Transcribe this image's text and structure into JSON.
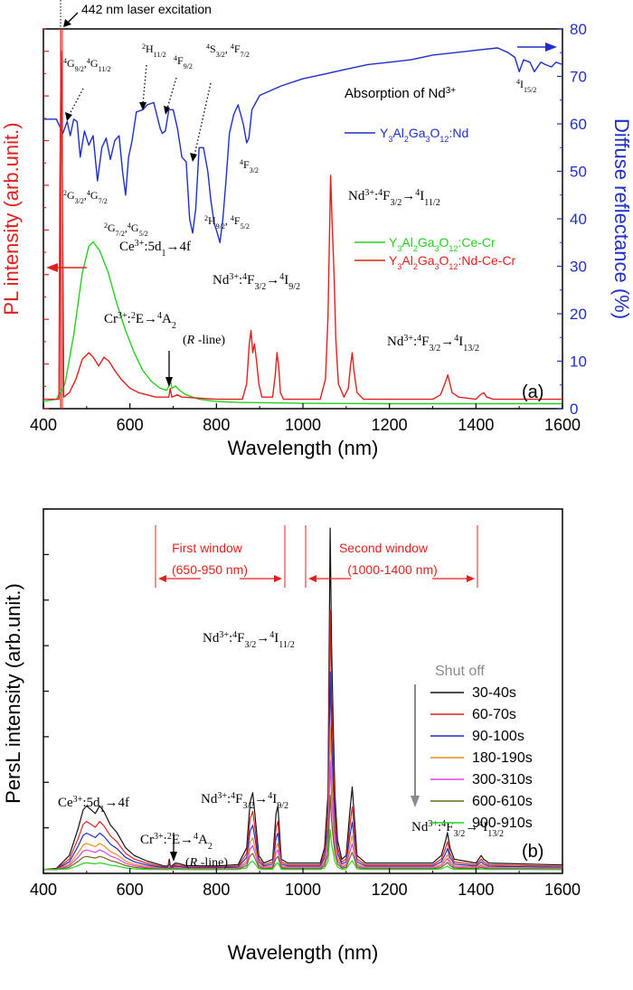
{
  "colors": {
    "red": "#e0201e",
    "blue": "#1e2ec8",
    "green": "#22d01e",
    "black": "#111111",
    "orange": "#f08c1e",
    "magenta": "#e040e0",
    "olive": "#6b6b12",
    "gray": "#808080"
  },
  "chart_data": [
    {
      "type": "line",
      "panel": "(a)",
      "xlabel": "Wavelength (nm)",
      "ylabel_left": "PL intensity (arb.unit.)",
      "ylabel_right": "Diffuse reflectance (%)",
      "xlim": [
        400,
        1600
      ],
      "ylim_right": [
        0,
        80
      ],
      "x_ticks": [
        "400",
        "600",
        "800",
        "1000",
        "1200",
        "1400",
        "1600"
      ],
      "y_ticks_right": [
        "0",
        "10",
        "20",
        "30",
        "40",
        "50",
        "60",
        "70",
        "80"
      ],
      "laser_label": "442 nm laser excitation",
      "annotations": {
        "ce": "Ce3+:5d1→4f",
        "cr": "Cr3+:2E→4A2",
        "r_line": "(R -line)",
        "nd1": "Nd3+:4F3/2→4I9/2",
        "nd2": "Nd3+:4F3/2→4I11/2",
        "nd3": "Nd3+:4F3/2→4I13/2",
        "abs": "Absorption of Nd3+"
      },
      "legend": {
        "blue": "Y3Al2Ga3O12:Nd",
        "green": "Y3Al2Ga3O12:Ce-Cr",
        "red": "Y3Al2Ga3O12:Nd-Ce-Cr"
      },
      "series": [
        {
          "name": "Y3Al2Ga3O12:Nd",
          "axis": "right",
          "points": [
            [
              400,
              61
            ],
            [
              430,
              61
            ],
            [
              445,
              58
            ],
            [
              455,
              60.5
            ],
            [
              462,
              57.5
            ],
            [
              470,
              61
            ],
            [
              478,
              60.5
            ],
            [
              485,
              53
            ],
            [
              495,
              58.5
            ],
            [
              505,
              55.5
            ],
            [
              515,
              57.5
            ],
            [
              525,
              48
            ],
            [
              535,
              55
            ],
            [
              545,
              57
            ],
            [
              555,
              52.5
            ],
            [
              565,
              56.5
            ],
            [
              575,
              57.5
            ],
            [
              583,
              50
            ],
            [
              590,
              45
            ],
            [
              597,
              53
            ],
            [
              605,
              56.5
            ],
            [
              615,
              62.5
            ],
            [
              630,
              63
            ],
            [
              640,
              64
            ],
            [
              655,
              64.5
            ],
            [
              670,
              59
            ],
            [
              675,
              58
            ],
            [
              682,
              58.5
            ],
            [
              690,
              63
            ],
            [
              700,
              63
            ],
            [
              710,
              59
            ],
            [
              720,
              53
            ],
            [
              730,
              52
            ],
            [
              738,
              40
            ],
            [
              745,
              37
            ],
            [
              752,
              42
            ],
            [
              760,
              55
            ],
            [
              770,
              55
            ],
            [
              780,
              50
            ],
            [
              787,
              44
            ],
            [
              795,
              39
            ],
            [
              802,
              37
            ],
            [
              808,
              35
            ],
            [
              815,
              40
            ],
            [
              822,
              48
            ],
            [
              830,
              58
            ],
            [
              840,
              62
            ],
            [
              850,
              64
            ],
            [
              862,
              60
            ],
            [
              870,
              56
            ],
            [
              875,
              57
            ],
            [
              882,
              63
            ],
            [
              900,
              66
            ],
            [
              950,
              68
            ],
            [
              1000,
              69.5
            ],
            [
              1050,
              70.5
            ],
            [
              1100,
              71.5
            ],
            [
              1150,
              72.5
            ],
            [
              1200,
              73
            ],
            [
              1250,
              73.5
            ],
            [
              1300,
              74.5
            ],
            [
              1350,
              75
            ],
            [
              1400,
              75.5
            ],
            [
              1450,
              76
            ],
            [
              1475,
              75
            ],
            [
              1490,
              74
            ],
            [
              1500,
              71
            ],
            [
              1510,
              73.5
            ],
            [
              1525,
              73
            ],
            [
              1535,
              71
            ],
            [
              1550,
              73
            ],
            [
              1560,
              72.5
            ],
            [
              1575,
              72
            ],
            [
              1585,
              73
            ],
            [
              1600,
              72.5
            ]
          ]
        },
        {
          "name": "Y3Al2Ga3O12:Ce-Cr",
          "axis": "left",
          "points": [
            [
              400,
              1
            ],
            [
              430,
              1.5
            ],
            [
              450,
              5
            ],
            [
              470,
              16
            ],
            [
              490,
              30
            ],
            [
              505,
              36
            ],
            [
              515,
              37
            ],
            [
              530,
              35
            ],
            [
              550,
              30
            ],
            [
              570,
              23
            ],
            [
              590,
              17
            ],
            [
              610,
              12
            ],
            [
              630,
              8
            ],
            [
              650,
              5.5
            ],
            [
              670,
              4
            ],
            [
              685,
              3.5
            ],
            [
              690,
              4.5
            ],
            [
              693,
              6
            ],
            [
              697,
              4
            ],
            [
              705,
              4.5
            ],
            [
              715,
              3.5
            ],
            [
              730,
              2.5
            ],
            [
              760,
              1.5
            ],
            [
              800,
              1
            ],
            [
              850,
              0.8
            ],
            [
              1000,
              0.6
            ],
            [
              1200,
              0.5
            ],
            [
              1400,
              0.5
            ],
            [
              1600,
              0.5
            ]
          ]
        },
        {
          "name": "Y3Al2Ga3O12:Nd-Ce-Cr",
          "axis": "left",
          "points": [
            [
              400,
              1.5
            ],
            [
              420,
              1.5
            ],
            [
              436,
              1.5
            ],
            [
              438,
              50
            ],
            [
              441,
              80
            ],
            [
              444,
              50
            ],
            [
              447,
              2
            ],
            [
              460,
              3
            ],
            [
              475,
              6
            ],
            [
              490,
              10.5
            ],
            [
              505,
              12
            ],
            [
              515,
              11
            ],
            [
              528,
              9
            ],
            [
              540,
              11
            ],
            [
              552,
              10
            ],
            [
              565,
              8
            ],
            [
              580,
              6
            ],
            [
              600,
              4
            ],
            [
              620,
              3
            ],
            [
              660,
              2
            ],
            [
              690,
              2
            ],
            [
              693,
              4
            ],
            [
              697,
              2
            ],
            [
              710,
              2.5
            ],
            [
              720,
              2
            ],
            [
              800,
              1.5
            ],
            [
              860,
              1.5
            ],
            [
              870,
              5
            ],
            [
              876,
              14
            ],
            [
              880,
              17
            ],
            [
              884,
              12
            ],
            [
              888,
              14
            ],
            [
              893,
              10
            ],
            [
              898,
              5
            ],
            [
              905,
              2
            ],
            [
              930,
              2
            ],
            [
              936,
              7
            ],
            [
              940,
              12
            ],
            [
              944,
              9
            ],
            [
              948,
              3
            ],
            [
              955,
              1.5
            ],
            [
              1040,
              1.5
            ],
            [
              1052,
              6
            ],
            [
              1058,
              20
            ],
            [
              1064,
              52
            ],
            [
              1068,
              40
            ],
            [
              1072,
              30
            ],
            [
              1076,
              15
            ],
            [
              1082,
              5
            ],
            [
              1095,
              2
            ],
            [
              1105,
              4
            ],
            [
              1110,
              9
            ],
            [
              1114,
              12
            ],
            [
              1118,
              8
            ],
            [
              1125,
              3
            ],
            [
              1140,
              1.5
            ],
            [
              1300,
              1.5
            ],
            [
              1318,
              2.5
            ],
            [
              1328,
              5
            ],
            [
              1335,
              7
            ],
            [
              1340,
              5
            ],
            [
              1345,
              3
            ],
            [
              1360,
              2
            ],
            [
              1400,
              1.5
            ],
            [
              1410,
              2.5
            ],
            [
              1418,
              3
            ],
            [
              1425,
              2
            ],
            [
              1440,
              1.5
            ],
            [
              1600,
              1.5
            ]
          ]
        }
      ]
    },
    {
      "type": "line",
      "panel": "(b)",
      "xlabel": "Wavelength (nm)",
      "ylabel": "PersL intensity (arb.unit.)",
      "xlim": [
        400,
        1600
      ],
      "x_ticks": [
        "400",
        "600",
        "800",
        "1000",
        "1200",
        "1400",
        "1600"
      ],
      "windows": {
        "first": "First window",
        "first_range": "(650-950 nm)",
        "second": "Second window",
        "second_range": "(1000-1400 nm)"
      },
      "annotations": {
        "ce": "Ce3+:5d1→4f",
        "cr": "Cr3+:2E→4A2",
        "r_line": "(R -line)",
        "nd1": "Nd3+:4F3/2→4I9/2",
        "nd2": "Nd3+:4F3/2→4I11/2",
        "nd3": "Nd3+:4F3/2→4I13/2"
      },
      "shut_off": "Shut off",
      "series_names": [
        "30-40s",
        "60-70s",
        "90-100s",
        "180-190s",
        "300-310s",
        "600-610s",
        "900-910s"
      ],
      "series_scales": [
        1.0,
        0.76,
        0.58,
        0.42,
        0.32,
        0.22,
        0.12
      ],
      "base_profile": [
        [
          400,
          0.3
        ],
        [
          430,
          0.6
        ],
        [
          460,
          4
        ],
        [
          480,
          11
        ],
        [
          492,
          16
        ],
        [
          500,
          17
        ],
        [
          510,
          16
        ],
        [
          520,
          15
        ],
        [
          530,
          17
        ],
        [
          540,
          15.5
        ],
        [
          555,
          12
        ],
        [
          570,
          10
        ],
        [
          590,
          6
        ],
        [
          610,
          4
        ],
        [
          640,
          2.5
        ],
        [
          680,
          1.2
        ],
        [
          688,
          1.2
        ],
        [
          691,
          3
        ],
        [
          694,
          1
        ],
        [
          705,
          2
        ],
        [
          715,
          1.8
        ],
        [
          730,
          1.3
        ],
        [
          800,
          1.2
        ],
        [
          850,
          1.6
        ],
        [
          870,
          6
        ],
        [
          878,
          18
        ],
        [
          884,
          20.5
        ],
        [
          888,
          16
        ],
        [
          893,
          10
        ],
        [
          898,
          4
        ],
        [
          910,
          2
        ],
        [
          930,
          3
        ],
        [
          938,
          15
        ],
        [
          942,
          17
        ],
        [
          946,
          10
        ],
        [
          950,
          3
        ],
        [
          965,
          2
        ],
        [
          1040,
          2
        ],
        [
          1050,
          6
        ],
        [
          1058,
          20
        ],
        [
          1063,
          90
        ],
        [
          1066,
          60
        ],
        [
          1070,
          38
        ],
        [
          1074,
          20
        ],
        [
          1080,
          8
        ],
        [
          1090,
          3
        ],
        [
          1100,
          4
        ],
        [
          1108,
          15
        ],
        [
          1114,
          22
        ],
        [
          1119,
          14
        ],
        [
          1125,
          4
        ],
        [
          1145,
          2
        ],
        [
          1300,
          2
        ],
        [
          1320,
          4
        ],
        [
          1330,
          8
        ],
        [
          1334,
          10
        ],
        [
          1340,
          6
        ],
        [
          1350,
          3
        ],
        [
          1400,
          2
        ],
        [
          1412,
          4
        ],
        [
          1418,
          3
        ],
        [
          1430,
          2
        ],
        [
          1600,
          1.5
        ]
      ]
    }
  ]
}
